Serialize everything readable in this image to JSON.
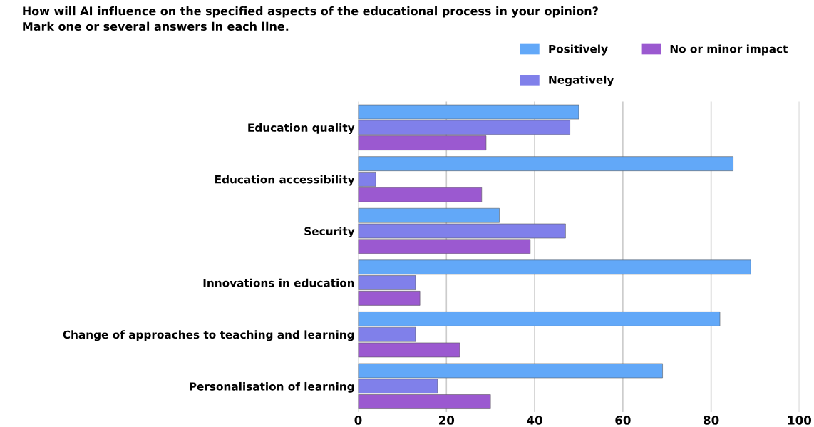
{
  "chart_data": {
    "type": "bar",
    "orientation": "horizontal",
    "title": "How will AI influence on the specified aspects of the educational process in your opinion?\nMark one or several answers in each line.",
    "categories": [
      "Education quality",
      "Education accessibility",
      "Security",
      "Innovations in education",
      "Change of approaches to teaching and learning",
      "Personalisation of learning"
    ],
    "series": [
      {
        "name": "Positively",
        "color": "#62a8f8",
        "values": [
          50,
          85,
          32,
          89,
          82,
          69
        ]
      },
      {
        "name": "Negatively",
        "color": "#8080ea",
        "values": [
          48,
          4,
          47,
          13,
          13,
          18
        ]
      },
      {
        "name": "No or minor impact",
        "color": "#9b59d0",
        "values": [
          29,
          28,
          39,
          14,
          23,
          30
        ]
      }
    ],
    "xlim": [
      0,
      100
    ],
    "xticks": [
      0,
      20,
      40,
      60,
      80,
      100
    ],
    "grid": "x",
    "legend": "top right"
  }
}
